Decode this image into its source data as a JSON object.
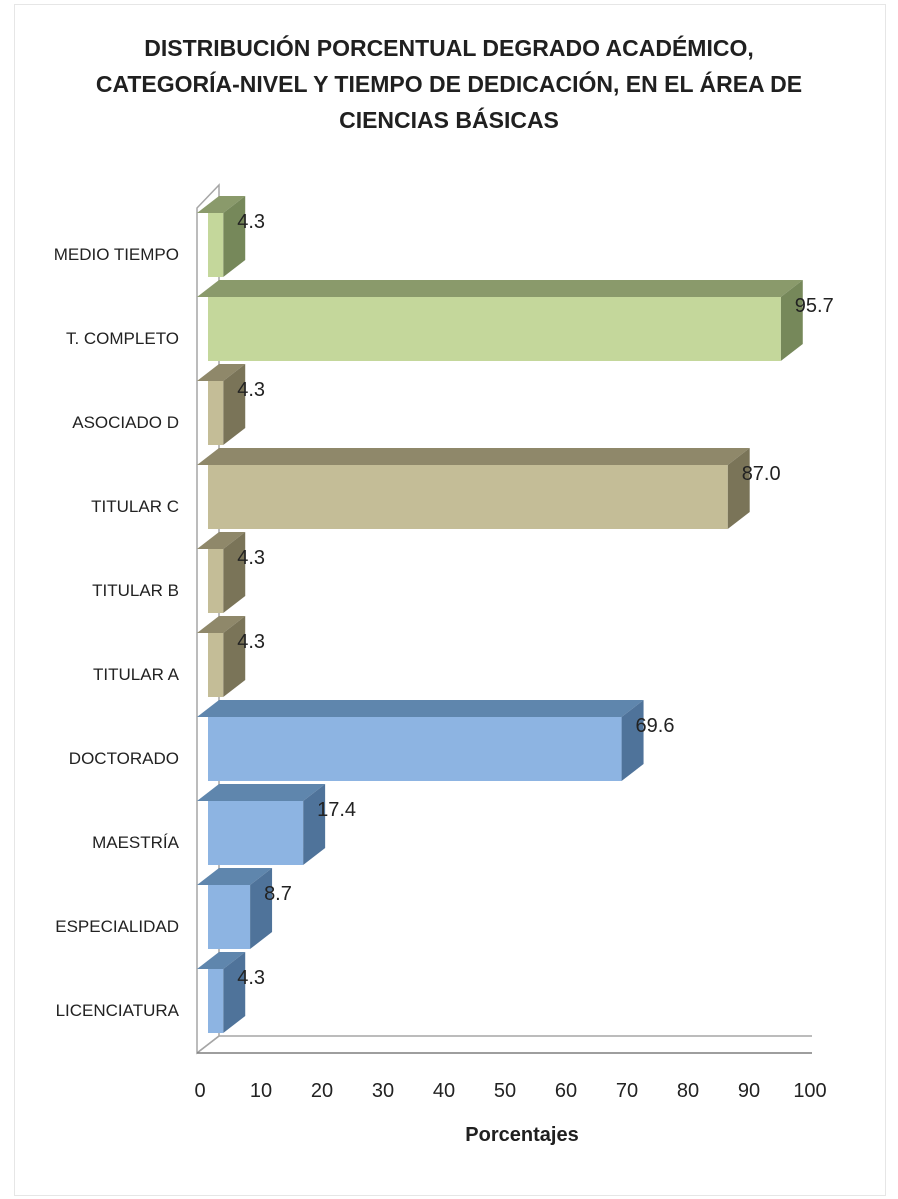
{
  "chart_data": {
    "type": "bar",
    "orientation": "horizontal",
    "three_d": true,
    "title_lines": [
      "DISTRIBUCIÓN PORCENTUAL DEGRADO ACADÉMICO,",
      "CATEGORÍA-NIVEL Y TIEMPO DE DEDICACIÓN, EN EL ÁREA DE",
      "CIENCIAS BÁSICAS"
    ],
    "xlabel": "Porcentajes",
    "ylabel": "",
    "xlim": [
      0,
      100
    ],
    "xticks": [
      "0",
      "10",
      "20",
      "30",
      "40",
      "50",
      "60",
      "70",
      "80",
      "90",
      "100"
    ],
    "grid": false,
    "legend": "none",
    "categories": [
      "MEDIO TIEMPO",
      "T. COMPLETO",
      "ASOCIADO D",
      "TITULAR C",
      "TITULAR B",
      "TITULAR A",
      "DOCTORADO",
      "MAESTRÍA",
      "ESPECIALIDAD",
      "LICENCIATURA"
    ],
    "values": [
      4.3,
      95.7,
      4.3,
      87.0,
      4.3,
      4.3,
      69.6,
      17.4,
      8.7,
      4.3
    ],
    "data_labels": [
      "4.3",
      "95.7",
      "4.3",
      "87.0",
      "4.3",
      "4.3",
      "69.6",
      "17.4",
      "8.7",
      "4.3"
    ],
    "bar_groups": [
      "green",
      "green",
      "tan",
      "tan",
      "tan",
      "tan",
      "blue",
      "blue",
      "blue",
      "blue"
    ],
    "colors": {
      "green": {
        "front": "#c4d79b",
        "top": "#8a9a6b",
        "side": "#76885a"
      },
      "tan": {
        "front": "#c4bd97",
        "top": "#8f886a",
        "side": "#7a7458"
      },
      "blue": {
        "front": "#8db4e2",
        "top": "#5f86ad",
        "side": "#4f739a"
      }
    }
  }
}
